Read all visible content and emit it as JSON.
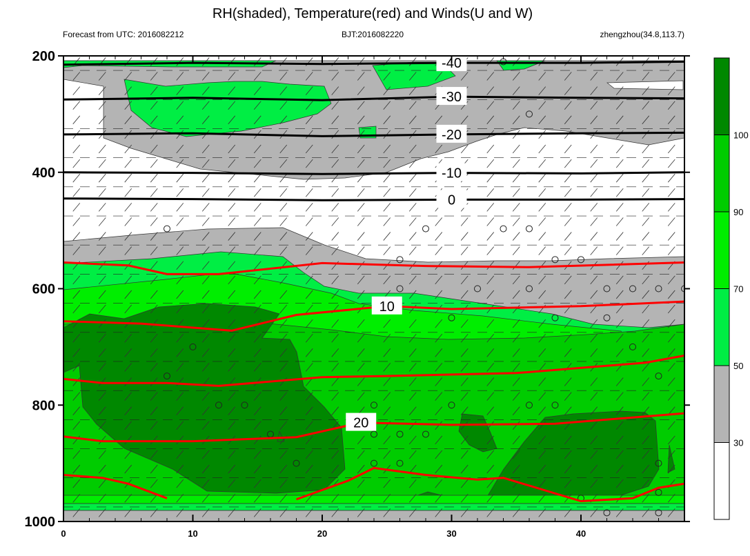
{
  "header": {
    "title": "RH(shaded), Temperature(red) and Winds(U and W)",
    "left": "Forecast from UTC: 2016082212",
    "center": "BJT:2016082220",
    "right": "zhengzhou(34.8,113.7)"
  },
  "chart_data": {
    "type": "contour",
    "title": "RH(shaded), Temperature(red) and Winds(U and W)",
    "xlabel": "",
    "ylabel": "",
    "xlim": [
      0,
      48
    ],
    "ylim": [
      200,
      1000
    ],
    "y_inverted": true,
    "xticks": [
      0,
      10,
      20,
      30,
      40
    ],
    "yticks": [
      200,
      400,
      600,
      800,
      1000
    ],
    "colorbar": {
      "levels": [
        30,
        50,
        70,
        90,
        100
      ],
      "colors": [
        "#ffffff",
        "#b4b4b4",
        "#00ee44",
        "#00ee00",
        "#00cc00",
        "#008800"
      ]
    },
    "temperature_contours": [
      {
        "label": "-40",
        "color": "#000000",
        "points": [
          [
            0,
            215
          ],
          [
            10,
            212
          ],
          [
            20,
            214
          ],
          [
            30,
            212
          ],
          [
            40,
            212
          ],
          [
            48,
            210
          ]
        ]
      },
      {
        "label": "-30",
        "color": "#000000",
        "points": [
          [
            0,
            275
          ],
          [
            10,
            272
          ],
          [
            20,
            276
          ],
          [
            30,
            270
          ],
          [
            40,
            272
          ],
          [
            48,
            273
          ]
        ]
      },
      {
        "label": "-20",
        "color": "#000000",
        "points": [
          [
            0,
            335
          ],
          [
            10,
            333
          ],
          [
            20,
            338
          ],
          [
            30,
            335
          ],
          [
            40,
            333
          ],
          [
            48,
            332
          ]
        ]
      },
      {
        "label": "-10",
        "color": "#000000",
        "points": [
          [
            0,
            400
          ],
          [
            10,
            401
          ],
          [
            20,
            403
          ],
          [
            30,
            401
          ],
          [
            40,
            402
          ],
          [
            48,
            400
          ]
        ]
      },
      {
        "label": "0",
        "color": "#000000",
        "points": [
          [
            0,
            445
          ],
          [
            10,
            446
          ],
          [
            20,
            448
          ],
          [
            30,
            447
          ],
          [
            40,
            447
          ],
          [
            48,
            446
          ]
        ]
      },
      {
        "label": "",
        "color": "#ff0000",
        "points": [
          [
            0,
            555
          ],
          [
            5,
            560
          ],
          [
            8,
            575
          ],
          [
            12,
            575
          ],
          [
            20,
            556
          ],
          [
            28,
            561
          ],
          [
            36,
            563
          ],
          [
            48,
            555
          ]
        ]
      },
      {
        "label": "10",
        "color": "#ff0000",
        "points": [
          [
            0,
            656
          ],
          [
            6,
            660
          ],
          [
            13,
            672
          ],
          [
            18,
            645
          ],
          [
            25,
            630
          ],
          [
            30,
            635
          ],
          [
            40,
            630
          ],
          [
            48,
            622
          ]
        ]
      },
      {
        "label": "",
        "color": "#ff0000",
        "points": [
          [
            0,
            755
          ],
          [
            3,
            762
          ],
          [
            8,
            762
          ],
          [
            12,
            767
          ],
          [
            20,
            752
          ],
          [
            25,
            750
          ],
          [
            35,
            745
          ],
          [
            45,
            727
          ],
          [
            48,
            715
          ]
        ]
      },
      {
        "label": "20",
        "color": "#ff0000",
        "points": [
          [
            0,
            854
          ],
          [
            3,
            862
          ],
          [
            10,
            862
          ],
          [
            18,
            855
          ],
          [
            23,
            830
          ],
          [
            30,
            834
          ],
          [
            38,
            832
          ],
          [
            48,
            814
          ]
        ]
      },
      {
        "label": "",
        "color": "#ff0000",
        "points": [
          [
            0,
            920
          ],
          [
            3,
            925
          ],
          [
            5,
            935
          ],
          [
            8,
            960
          ]
        ]
      },
      {
        "label": "",
        "color": "#ff0000",
        "points": [
          [
            18,
            962
          ],
          [
            22,
            930
          ],
          [
            24,
            908
          ],
          [
            28,
            920
          ],
          [
            32,
            928
          ],
          [
            34,
            925
          ],
          [
            40,
            965
          ],
          [
            44,
            960
          ],
          [
            46,
            942
          ],
          [
            48,
            935
          ]
        ]
      }
    ],
    "rh_regions": [
      {
        "level": "30-50",
        "color": "#b4b4b4"
      },
      {
        "level": "50-70",
        "color": "#00ee44"
      },
      {
        "level": "70-90",
        "color": "#00ee00"
      },
      {
        "level": "90-100",
        "color": "#00cc00"
      },
      {
        "level": ">100",
        "color": "#008800"
      }
    ],
    "wind_calm_points": [
      [
        8,
        497
      ],
      [
        28,
        497
      ],
      [
        34,
        497
      ],
      [
        36,
        497
      ],
      [
        26,
        550
      ],
      [
        38,
        550
      ],
      [
        40,
        550
      ],
      [
        26,
        600
      ],
      [
        32,
        600
      ],
      [
        36,
        600
      ],
      [
        42,
        600
      ],
      [
        44,
        600
      ],
      [
        46,
        600
      ],
      [
        48,
        600
      ],
      [
        30,
        650
      ],
      [
        38,
        650
      ],
      [
        42,
        650
      ],
      [
        10,
        700
      ],
      [
        44,
        700
      ],
      [
        8,
        750
      ],
      [
        46,
        750
      ],
      [
        12,
        800
      ],
      [
        14,
        800
      ],
      [
        24,
        800
      ],
      [
        30,
        800
      ],
      [
        36,
        800
      ],
      [
        38,
        800
      ],
      [
        16,
        850
      ],
      [
        24,
        850
      ],
      [
        26,
        850
      ],
      [
        28,
        850
      ],
      [
        18,
        900
      ],
      [
        24,
        900
      ],
      [
        26,
        900
      ],
      [
        46,
        900
      ],
      [
        46,
        950
      ],
      [
        34,
        210
      ],
      [
        36,
        300
      ],
      [
        42,
        985
      ],
      [
        40,
        960
      ],
      [
        46,
        985
      ]
    ]
  }
}
